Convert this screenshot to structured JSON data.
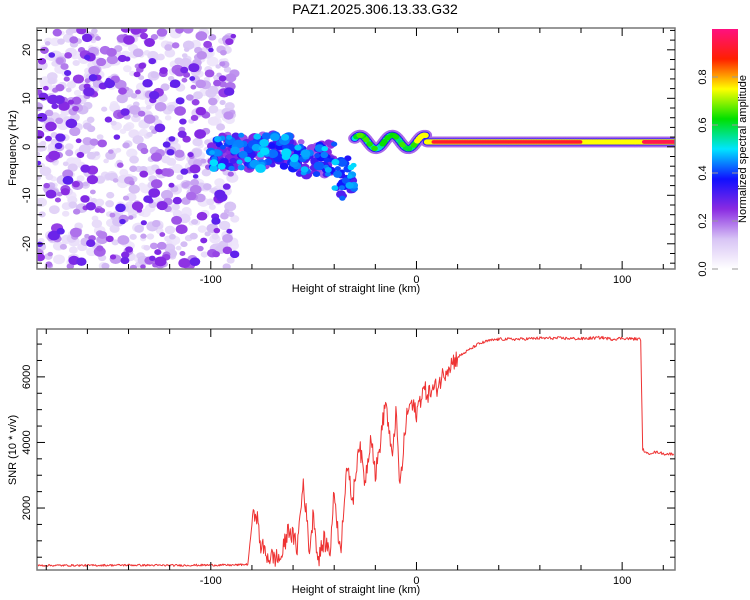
{
  "figure_title": "PAZ1.2025.306.13.33.G32",
  "chart_data": [
    {
      "type": "heatmap",
      "title": "PAZ1.2025.306.13.33.G32",
      "xlabel": "Height of straight line (km)",
      "ylabel": "Frequency (Hz)",
      "xlim": [
        -184.5,
        125.7
      ],
      "ylim": [
        -25.2,
        24.5
      ],
      "xticks": [
        {
          "value": -100,
          "label": "-100"
        },
        {
          "value": 0,
          "label": "0"
        },
        {
          "value": 100,
          "label": "100"
        }
      ],
      "yticks": [
        {
          "value": 20,
          "label": "20"
        },
        {
          "value": 10,
          "label": "10"
        },
        {
          "value": 0,
          "label": "0"
        },
        {
          "value": -10,
          "label": "-10"
        },
        {
          "value": -20,
          "label": "-20"
        }
      ],
      "colorbar": {
        "label": "Normalized spectral amplitude",
        "range": [
          0.0,
          1.0
        ],
        "ticks": [
          {
            "value": 0.0,
            "label": "0.0"
          },
          {
            "value": 0.2,
            "label": "0.2"
          },
          {
            "value": 0.4,
            "label": "0.4"
          },
          {
            "value": 0.6,
            "label": "0.6"
          },
          {
            "value": 0.8,
            "label": "0.8"
          }
        ],
        "colormap": [
          "#ffffff",
          "#d8c4f5",
          "#8a2be2",
          "#1010ff",
          "#00e5ff",
          "#00e000",
          "#ffff00",
          "#ff2000",
          "#ff1080"
        ]
      },
      "description_regions": [
        {
          "x_range": [
            -184.5,
            -88
          ],
          "freq_range": [
            -25,
            24.5
          ],
          "amplitude": [
            0.05,
            0.3
          ],
          "kind": "noise"
        },
        {
          "x_range": [
            -100,
            -40
          ],
          "freq_center": -1,
          "amplitude": [
            0.2,
            0.5
          ],
          "kind": "scattered"
        },
        {
          "x_range": [
            -40,
            -30
          ],
          "freq_center": -8,
          "amplitude": [
            0.3,
            0.5
          ],
          "kind": "branch"
        },
        {
          "x_range": [
            -30,
            125.7
          ],
          "freq_center": 1,
          "amplitude": [
            0.5,
            1.0
          ],
          "kind": "line"
        }
      ]
    },
    {
      "type": "line",
      "xlabel": "Height of straight line (km)",
      "ylabel": "SNR (10 * v/v)",
      "xlim": [
        -184.5,
        125.7
      ],
      "ylim": [
        110,
        7460
      ],
      "xticks": [
        {
          "value": -100,
          "label": "-100"
        },
        {
          "value": 0,
          "label": "0"
        },
        {
          "value": 100,
          "label": "100"
        }
      ],
      "yticks": [
        {
          "value": 2000,
          "label": "2000"
        },
        {
          "value": 4000,
          "label": "4000"
        },
        {
          "value": 6000,
          "label": "6000"
        }
      ],
      "color": "#ee3333",
      "series": [
        {
          "name": "SNR",
          "x": [
            -184,
            -160,
            -140,
            -120,
            -100,
            -90,
            -82,
            -80,
            -78,
            -76,
            -74,
            -72,
            -70,
            -66,
            -62,
            -58,
            -55,
            -52,
            -50,
            -48,
            -45,
            -42,
            -40,
            -37,
            -34,
            -31,
            -28,
            -25,
            -22,
            -20,
            -18,
            -15,
            -12,
            -10,
            -8,
            -5,
            -3,
            0,
            3,
            6,
            10,
            15,
            20,
            25,
            30,
            35,
            40,
            50,
            60,
            70,
            80,
            90,
            95,
            100,
            105,
            109,
            110,
            112,
            115,
            118,
            120,
            125
          ],
          "y": [
            250,
            250,
            260,
            250,
            260,
            260,
            280,
            1500,
            2000,
            900,
            700,
            500,
            500,
            450,
            1400,
            800,
            2800,
            700,
            1900,
            400,
            1000,
            700,
            2500,
            600,
            3300,
            2200,
            4000,
            2800,
            4300,
            3000,
            3800,
            5300,
            3500,
            4900,
            2600,
            4700,
            5200,
            4900,
            5600,
            5500,
            5700,
            6300,
            6600,
            6800,
            7000,
            7100,
            7150,
            7150,
            7180,
            7180,
            7160,
            7200,
            7150,
            7180,
            7160,
            7150,
            3800,
            3650,
            3700,
            3700,
            3650,
            3650
          ]
        }
      ]
    }
  ]
}
